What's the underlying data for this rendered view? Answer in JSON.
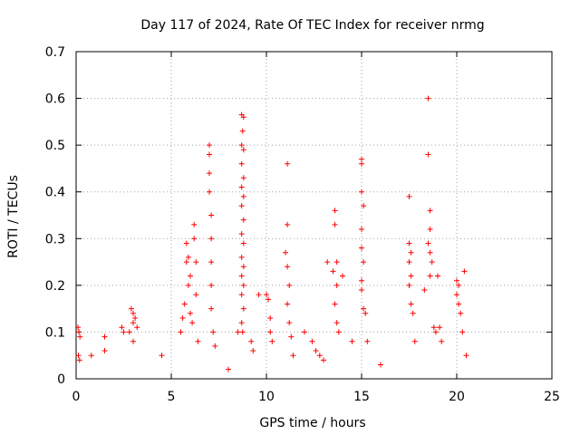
{
  "chart_data": {
    "type": "scatter",
    "title": "Day 117 of 2024, Rate Of TEC Index for receiver nrmg",
    "xlabel": "GPS time / hours",
    "ylabel": "ROTI / TECUs",
    "xlim": [
      0,
      25
    ],
    "ylim": [
      0,
      0.7
    ],
    "x_ticks": [
      "0",
      "5",
      "10",
      "15",
      "20",
      "25"
    ],
    "y_ticks": [
      "0",
      "0.1",
      "0.2",
      "0.3",
      "0.4",
      "0.5",
      "0.6",
      "0.7"
    ],
    "grid": true,
    "marker": "plus",
    "color": "#ff0000",
    "series": [
      {
        "values": [
          [
            0.1,
            0.11
          ],
          [
            0.15,
            0.1
          ],
          [
            0.2,
            0.09
          ],
          [
            0.12,
            0.05
          ],
          [
            0.18,
            0.04
          ],
          [
            0.8,
            0.05
          ],
          [
            1.5,
            0.06
          ],
          [
            1.5,
            0.09
          ],
          [
            2.9,
            0.15
          ],
          [
            3.0,
            0.14
          ],
          [
            3.1,
            0.13
          ],
          [
            3.0,
            0.12
          ],
          [
            2.8,
            0.1
          ],
          [
            3.2,
            0.11
          ],
          [
            3.0,
            0.08
          ],
          [
            2.4,
            0.11
          ],
          [
            2.5,
            0.1
          ],
          [
            4.5,
            0.05
          ],
          [
            5.5,
            0.1
          ],
          [
            5.6,
            0.13
          ],
          [
            5.7,
            0.16
          ],
          [
            5.8,
            0.25
          ],
          [
            5.8,
            0.29
          ],
          [
            5.9,
            0.26
          ],
          [
            5.9,
            0.2
          ],
          [
            6.0,
            0.22
          ],
          [
            6.0,
            0.14
          ],
          [
            6.1,
            0.12
          ],
          [
            6.2,
            0.3
          ],
          [
            6.2,
            0.33
          ],
          [
            6.3,
            0.25
          ],
          [
            6.3,
            0.18
          ],
          [
            6.4,
            0.08
          ],
          [
            7.0,
            0.5
          ],
          [
            7.0,
            0.48
          ],
          [
            7.0,
            0.44
          ],
          [
            7.0,
            0.4
          ],
          [
            7.1,
            0.35
          ],
          [
            7.1,
            0.3
          ],
          [
            7.1,
            0.25
          ],
          [
            7.1,
            0.2
          ],
          [
            7.1,
            0.15
          ],
          [
            7.2,
            0.1
          ],
          [
            7.3,
            0.07
          ],
          [
            8.0,
            0.02
          ],
          [
            8.5,
            0.1
          ],
          [
            8.7,
            0.565
          ],
          [
            8.8,
            0.56
          ],
          [
            8.75,
            0.53
          ],
          [
            8.7,
            0.5
          ],
          [
            8.8,
            0.49
          ],
          [
            8.7,
            0.46
          ],
          [
            8.8,
            0.43
          ],
          [
            8.7,
            0.41
          ],
          [
            8.8,
            0.39
          ],
          [
            8.7,
            0.37
          ],
          [
            8.8,
            0.34
          ],
          [
            8.7,
            0.31
          ],
          [
            8.8,
            0.29
          ],
          [
            8.7,
            0.26
          ],
          [
            8.8,
            0.24
          ],
          [
            8.7,
            0.22
          ],
          [
            8.8,
            0.2
          ],
          [
            8.7,
            0.18
          ],
          [
            8.8,
            0.15
          ],
          [
            8.7,
            0.12
          ],
          [
            8.75,
            0.1
          ],
          [
            9.2,
            0.08
          ],
          [
            9.3,
            0.06
          ],
          [
            10.0,
            0.18
          ],
          [
            10.1,
            0.17
          ],
          [
            10.2,
            0.13
          ],
          [
            10.2,
            0.1
          ],
          [
            10.3,
            0.08
          ],
          [
            9.6,
            0.18
          ],
          [
            11.1,
            0.46
          ],
          [
            11.1,
            0.33
          ],
          [
            11.0,
            0.27
          ],
          [
            11.1,
            0.24
          ],
          [
            11.2,
            0.2
          ],
          [
            11.1,
            0.16
          ],
          [
            11.2,
            0.12
          ],
          [
            11.3,
            0.09
          ],
          [
            11.4,
            0.05
          ],
          [
            12.0,
            0.1
          ],
          [
            12.4,
            0.08
          ],
          [
            12.6,
            0.06
          ],
          [
            12.8,
            0.05
          ],
          [
            13.0,
            0.04
          ],
          [
            13.2,
            0.25
          ],
          [
            13.5,
            0.23
          ],
          [
            13.6,
            0.36
          ],
          [
            13.6,
            0.33
          ],
          [
            13.7,
            0.25
          ],
          [
            13.7,
            0.2
          ],
          [
            13.6,
            0.16
          ],
          [
            13.7,
            0.12
          ],
          [
            13.8,
            0.1
          ],
          [
            14.0,
            0.22
          ],
          [
            14.5,
            0.08
          ],
          [
            15.0,
            0.47
          ],
          [
            15.0,
            0.46
          ],
          [
            15.0,
            0.4
          ],
          [
            15.1,
            0.37
          ],
          [
            15.0,
            0.32
          ],
          [
            15.0,
            0.28
          ],
          [
            15.1,
            0.25
          ],
          [
            15.0,
            0.21
          ],
          [
            15.0,
            0.19
          ],
          [
            15.1,
            0.15
          ],
          [
            15.2,
            0.14
          ],
          [
            15.3,
            0.08
          ],
          [
            16.0,
            0.03
          ],
          [
            17.5,
            0.39
          ],
          [
            17.5,
            0.29
          ],
          [
            17.6,
            0.27
          ],
          [
            17.5,
            0.25
          ],
          [
            17.6,
            0.22
          ],
          [
            17.5,
            0.2
          ],
          [
            17.6,
            0.16
          ],
          [
            17.7,
            0.14
          ],
          [
            17.8,
            0.08
          ],
          [
            18.3,
            0.19
          ],
          [
            18.5,
            0.6
          ],
          [
            18.5,
            0.48
          ],
          [
            18.6,
            0.36
          ],
          [
            18.6,
            0.32
          ],
          [
            18.5,
            0.29
          ],
          [
            18.6,
            0.27
          ],
          [
            18.7,
            0.25
          ],
          [
            18.6,
            0.22
          ],
          [
            18.8,
            0.11
          ],
          [
            18.9,
            0.1
          ],
          [
            19.0,
            0.22
          ],
          [
            19.1,
            0.11
          ],
          [
            19.2,
            0.08
          ],
          [
            20.0,
            0.21
          ],
          [
            20.1,
            0.2
          ],
          [
            20.0,
            0.18
          ],
          [
            20.1,
            0.16
          ],
          [
            20.2,
            0.14
          ],
          [
            20.3,
            0.1
          ],
          [
            20.4,
            0.23
          ],
          [
            20.5,
            0.05
          ]
        ]
      }
    ]
  }
}
